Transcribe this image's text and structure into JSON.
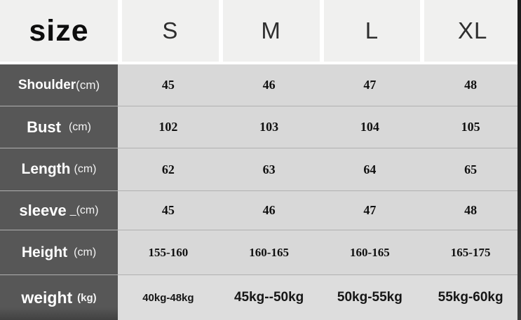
{
  "table": {
    "header": {
      "title": "size",
      "columns": [
        "S",
        "M",
        "L",
        "XL"
      ]
    },
    "rows": [
      {
        "label": "Shoulder",
        "unit": "(cm)",
        "values": [
          "45",
          "46",
          "47",
          "48"
        ]
      },
      {
        "label": "Bust",
        "unit": "(cm)",
        "values": [
          "102",
          "103",
          "104",
          "105"
        ]
      },
      {
        "label": "Length",
        "unit": "(cm)",
        "values": [
          "62",
          "63",
          "64",
          "65"
        ]
      },
      {
        "label": "sleeve",
        "unit": "_(cm)",
        "values": [
          "45",
          "46",
          "47",
          "48"
        ]
      },
      {
        "label": "Height",
        "unit": "(cm)",
        "values": [
          "155-160",
          "160-165",
          "160-165",
          "165-175"
        ]
      },
      {
        "label": "weight",
        "unit": "(kg)",
        "values": [
          "40kg-48kg",
          "45kg--50kg",
          "50kg-55kg",
          "55kg-60kg"
        ]
      }
    ],
    "colors": {
      "header_cell_bg": "#f0f0ef",
      "label_column_bg": "#575757",
      "body_cell_bg": "#d8d8d8",
      "weight_row_bg": "#dddddd",
      "row_separator": "#b0b0b0",
      "photo_edge_strip": "#1b1b1b",
      "label_text": "#ffffff",
      "value_text": "#101010"
    }
  }
}
